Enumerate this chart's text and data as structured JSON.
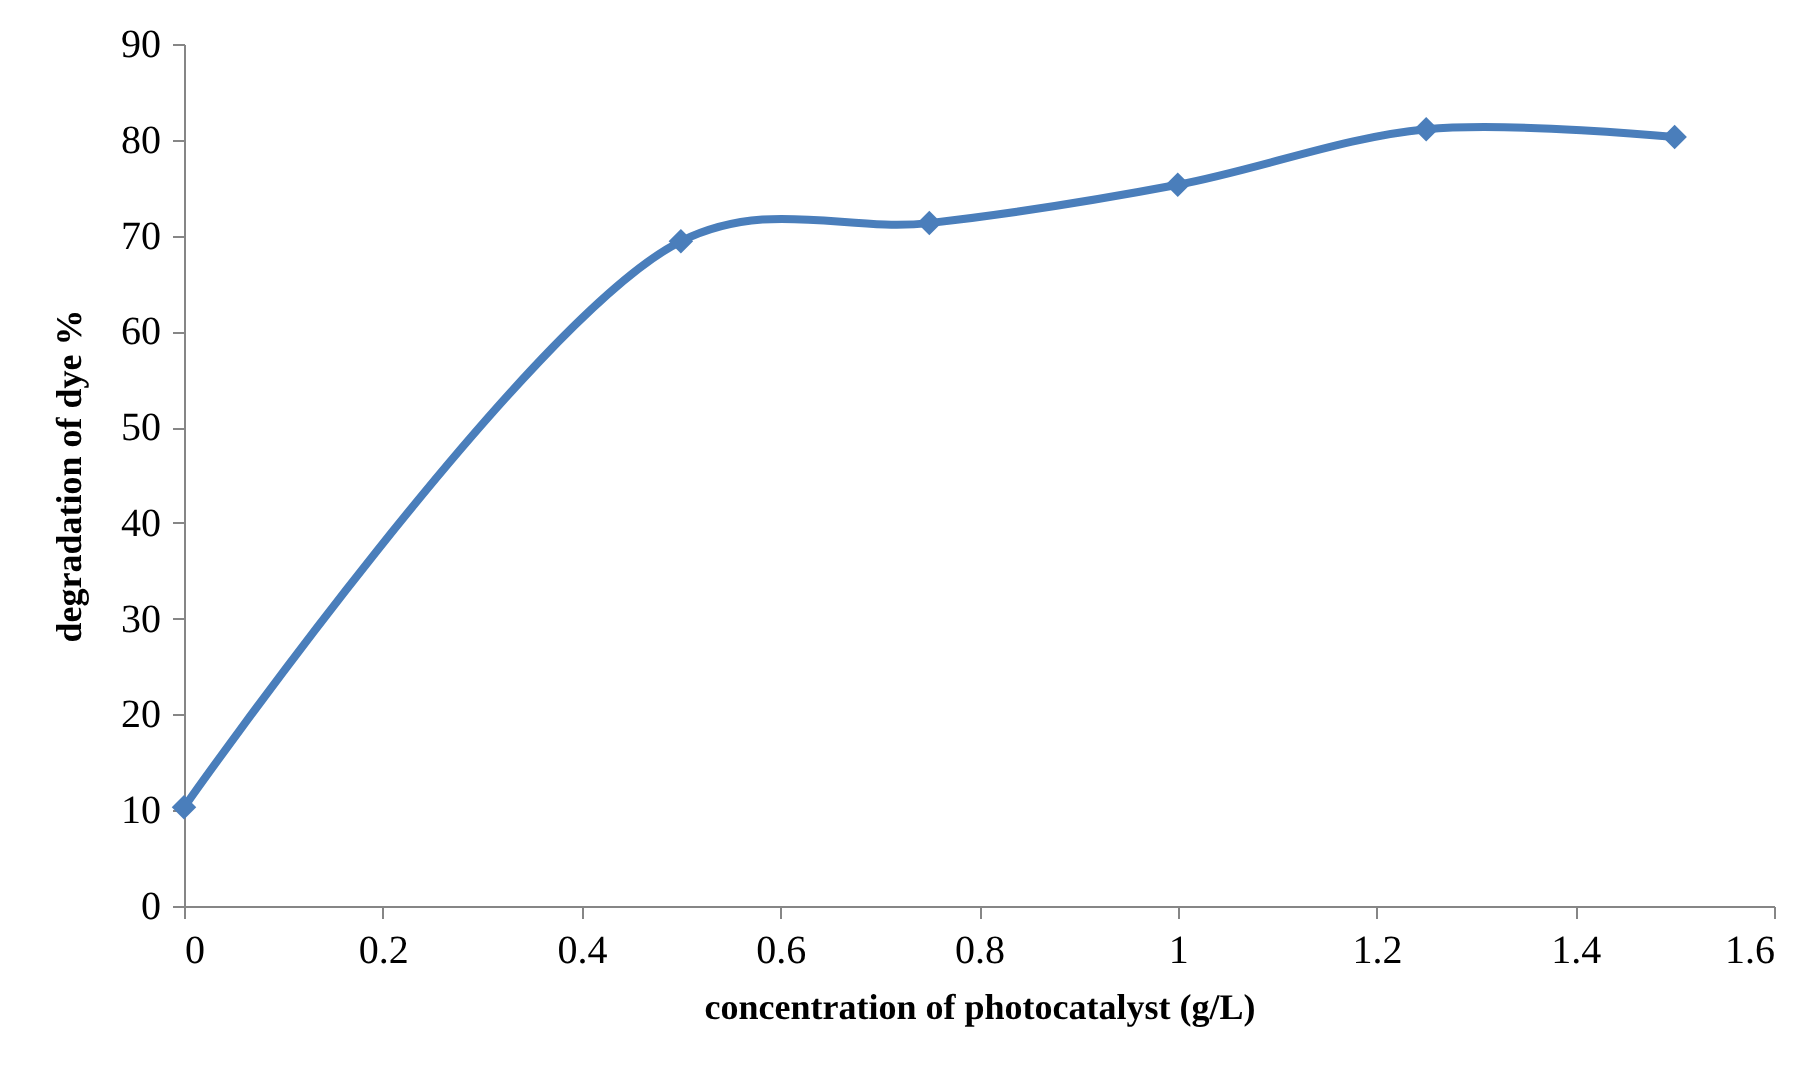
{
  "chart_data": {
    "type": "line",
    "xlabel": "concentration  of  photocatalyst  (g/L)",
    "ylabel": "degradation  of  dye  %",
    "x": [
      0,
      0.5,
      0.75,
      1,
      1.25,
      1.5
    ],
    "series": [
      {
        "color": "#4a7ebb",
        "values": [
          10.3,
          69.4,
          71.3,
          75.3,
          81.1,
          80.3
        ]
      }
    ],
    "xlim": [
      0,
      1.6
    ],
    "xticks": [
      0,
      0.2,
      0.4,
      0.6,
      0.8,
      1,
      1.2,
      1.4,
      1.6
    ],
    "ylim": [
      0,
      90
    ],
    "yticks": [
      0,
      10,
      20,
      30,
      40,
      50,
      60,
      70,
      80,
      90
    ],
    "grid": false,
    "marker": "diamond",
    "line_style": "solid"
  }
}
